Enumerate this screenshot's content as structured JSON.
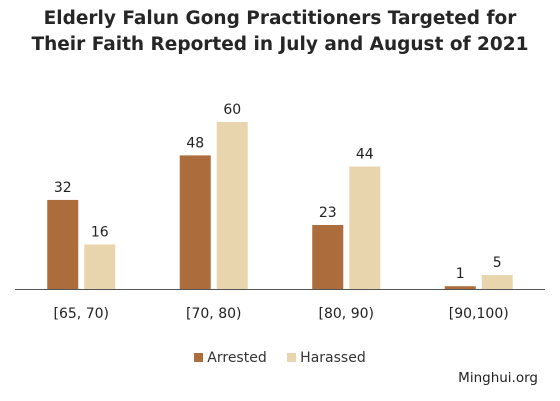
{
  "title_line1": "Elderly Falun Gong Practitioners Targeted for",
  "title_line2": "Their Faith Reported in July and August of 2021",
  "source": "Minghui.org",
  "chart_data": {
    "type": "bar",
    "title": "Elderly Falun Gong Practitioners Targeted for Their Faith Reported in July and August of 2021",
    "categories": [
      "[65, 70)",
      "[70, 80)",
      "[80, 90)",
      "[90,100)"
    ],
    "series": [
      {
        "name": "Arrested",
        "values": [
          32,
          48,
          23,
          1
        ],
        "color": "#AC6C3C"
      },
      {
        "name": "Harassed",
        "values": [
          16,
          60,
          44,
          5
        ],
        "color": "#E8D5AE"
      }
    ],
    "ylim": [
      0,
      60
    ],
    "grid": false,
    "legend": "bottom",
    "data_labels": true
  }
}
